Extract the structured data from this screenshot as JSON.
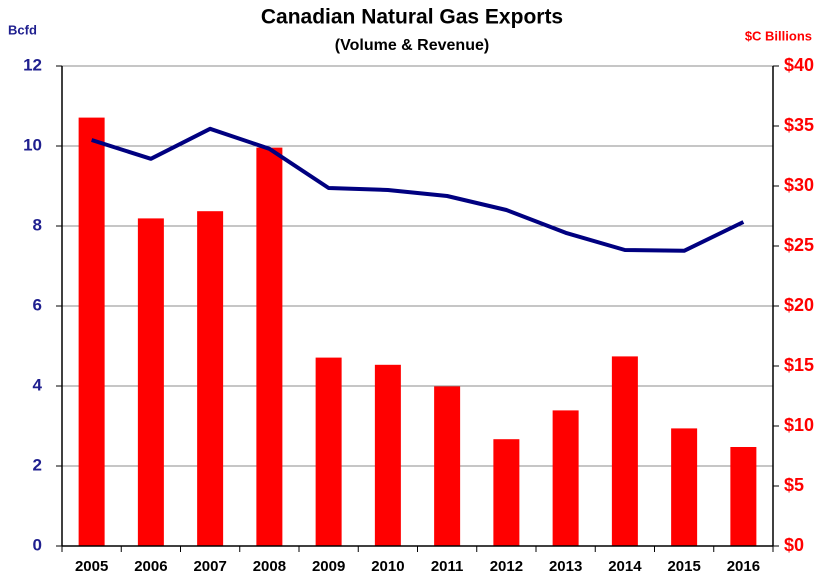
{
  "chart_data": {
    "type": "bar-line",
    "title": "Canadian Natural Gas Exports",
    "subtitle": "(Volume & Revenue)",
    "y_label": "Bcfd",
    "y2_label": "$C Billions",
    "categories": [
      "2005",
      "2006",
      "2007",
      "2008",
      "2009",
      "2010",
      "2011",
      "2012",
      "2013",
      "2014",
      "2015",
      "2016"
    ],
    "series": [
      {
        "type": "bar",
        "axis": "y2",
        "color": "#ff0000",
        "values": [
          35.7,
          27.3,
          27.9,
          33.2,
          15.7,
          15.1,
          13.3,
          8.9,
          11.3,
          15.8,
          9.8,
          8.25
        ]
      },
      {
        "type": "line",
        "axis": "y",
        "color": "#000080",
        "values": [
          10.15,
          9.68,
          10.43,
          9.93,
          8.95,
          8.9,
          8.75,
          8.4,
          7.83,
          7.4,
          7.38,
          8.1
        ]
      }
    ],
    "ylim": [
      0,
      12
    ],
    "yticks": [
      0,
      2,
      4,
      6,
      8,
      10,
      12
    ],
    "y2lim": [
      0,
      40
    ],
    "y2ticks": [
      {
        "value": 0,
        "label": "$0"
      },
      {
        "value": 5,
        "label": "$5"
      },
      {
        "value": 10,
        "label": "$10"
      },
      {
        "value": 15,
        "label": "$15"
      },
      {
        "value": 20,
        "label": "$20"
      },
      {
        "value": 25,
        "label": "$25"
      },
      {
        "value": 30,
        "label": "$30"
      },
      {
        "value": 35,
        "label": "$35"
      },
      {
        "value": 40,
        "label": "$40"
      }
    ],
    "grid": true
  }
}
